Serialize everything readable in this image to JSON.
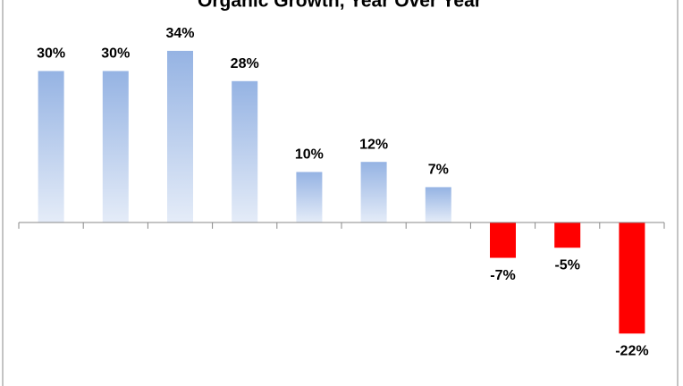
{
  "chart_data": {
    "type": "bar",
    "title": "Organic Growth, Year Over Year",
    "categories": [
      null,
      null,
      null,
      null,
      null,
      null,
      null,
      null,
      null,
      null
    ],
    "values": [
      30,
      30,
      34,
      28,
      10,
      12,
      7,
      -7,
      -5,
      -22
    ],
    "value_labels": [
      "30%",
      "30%",
      "34%",
      "28%",
      "10%",
      "12%",
      "7%",
      "-7%",
      "-5%",
      "-22%"
    ],
    "color": "#95b3e3",
    "negative_color": "#ff0000"
  }
}
